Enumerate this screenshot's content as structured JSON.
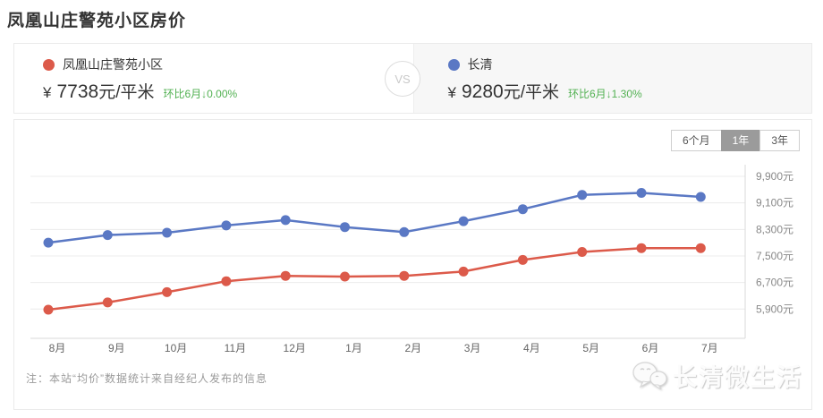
{
  "title": "凤凰山庄警苑小区房价",
  "compare": {
    "vs_label": "VS",
    "left": {
      "name": "凤凰山庄警苑小区",
      "currency": "¥",
      "price": "7738",
      "unit": "元/平米",
      "change": "环比6月↓0.00%",
      "dot_color": "#DC5A4A"
    },
    "right": {
      "name": "长清",
      "currency": "¥",
      "price": "9280",
      "unit": "元/平米",
      "change": "环比6月↓1.30%",
      "dot_color": "#5A78C4"
    }
  },
  "ranges": [
    {
      "label": "6个月",
      "selected": false
    },
    {
      "label": "1年",
      "selected": true
    },
    {
      "label": "3年",
      "selected": false
    }
  ],
  "note": "注：本站“均价”数据统计来自经纪人发布的信息",
  "watermark": {
    "text": "长清微生活"
  },
  "colors": {
    "community_series": "#DC5A4A",
    "district_series": "#5A78C4",
    "change_green": "#52b152",
    "grid_line": "#ececec",
    "axis_line": "#d9d9d9",
    "axis_text": "#888888"
  },
  "chart_data": {
    "type": "line",
    "title": "小区与区域均价走势（1年）",
    "categories": [
      "8月",
      "9月",
      "10月",
      "11月",
      "12月",
      "1月",
      "2月",
      "3月",
      "4月",
      "5月",
      "6月",
      "7月"
    ],
    "series": [
      {
        "name": "凤凰山庄警苑小区",
        "color": "#DC5A4A",
        "values": [
          5880,
          6100,
          6410,
          6740,
          6900,
          6880,
          6900,
          7030,
          7380,
          7620,
          7738,
          7738
        ]
      },
      {
        "name": "长清",
        "color": "#5A78C4",
        "values": [
          7900,
          8130,
          8200,
          8420,
          8580,
          8370,
          8220,
          8550,
          8910,
          9340,
          9400,
          9280
        ]
      }
    ],
    "yticks": [
      {
        "label": "9,900元",
        "value": 9900
      },
      {
        "label": "9,100元",
        "value": 9100
      },
      {
        "label": "8,300元",
        "value": 8300
      },
      {
        "label": "7,500元",
        "value": 7500
      },
      {
        "label": "6,700元",
        "value": 6700
      },
      {
        "label": "5,900元",
        "value": 5900
      }
    ],
    "ylim": [
      5020,
      10250
    ],
    "unit": "元",
    "grid": true,
    "legend_position": "none",
    "yaxis_position": "right"
  }
}
